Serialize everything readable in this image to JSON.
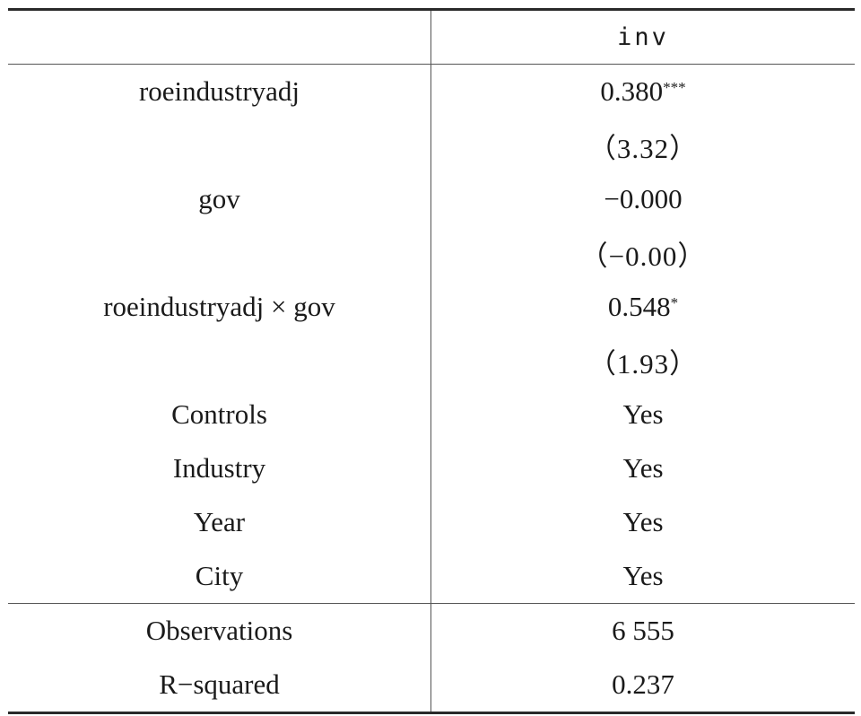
{
  "header": {
    "col1": "",
    "col2": "inv"
  },
  "rows": [
    {
      "label": "roeindustryadj",
      "value": "0.380",
      "stars": "***",
      "tstat": "（3.32）"
    },
    {
      "label": "gov",
      "value": "−0.000",
      "stars": "",
      "tstat": "（−0.00）"
    },
    {
      "label": "roeindustryadj × gov",
      "value": "0.548",
      "stars": "*",
      "tstat": "（1.93）"
    }
  ],
  "fixed_effects": [
    {
      "label": "Controls",
      "value": "Yes"
    },
    {
      "label": "Industry",
      "value": "Yes"
    },
    {
      "label": "Year",
      "value": "Yes"
    },
    {
      "label": "City",
      "value": "Yes"
    }
  ],
  "stats": [
    {
      "label": "Observations",
      "value": "6 555"
    },
    {
      "label": "R−squared",
      "value": "0.237"
    }
  ]
}
